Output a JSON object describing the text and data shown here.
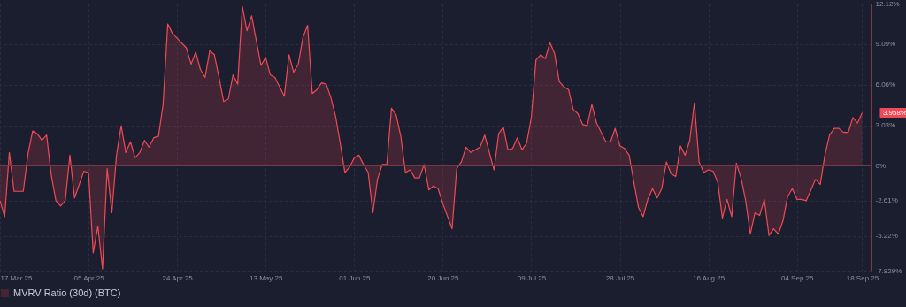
{
  "chart_data": {
    "type": "area",
    "xlim": [
      "2025-03-17",
      "2025-09-20"
    ],
    "ylim": [
      -7.829,
      12.12
    ],
    "xticks": [
      {
        "value": "2025-03-17",
        "label": "17 Mar 25"
      },
      {
        "value": "2025-04-05",
        "label": "05 Apr 25"
      },
      {
        "value": "2025-04-24",
        "label": "24 Apr 25"
      },
      {
        "value": "2025-05-13",
        "label": "13 May 25"
      },
      {
        "value": "2025-06-01",
        "label": "01 Jun 25"
      },
      {
        "value": "2025-06-20",
        "label": "20 Jun 25"
      },
      {
        "value": "2025-07-09",
        "label": "09 Jul 25"
      },
      {
        "value": "2025-07-28",
        "label": "28 Jul 25"
      },
      {
        "value": "2025-08-16",
        "label": "16 Aug 25"
      },
      {
        "value": "2025-09-04",
        "label": "04 Sep 25"
      },
      {
        "value": "2025-09-18",
        "label": "18 Sep 25"
      }
    ],
    "yticks": [
      {
        "value": 12.12,
        "label": "12.12%"
      },
      {
        "value": 9.09,
        "label": "9.09%"
      },
      {
        "value": 6.06,
        "label": "6.06%"
      },
      {
        "value": 3.03,
        "label": "3.03%"
      },
      {
        "value": 0,
        "label": "0%"
      },
      {
        "value": -2.61,
        "label": "-2.61%"
      },
      {
        "value": -5.22,
        "label": "-5.22%"
      },
      {
        "value": -7.829,
        "label": "-7.829%"
      }
    ],
    "grid": true,
    "legend": "bottom",
    "line_style": "solid",
    "ref_lines": [
      {
        "axis": "y",
        "value": 0,
        "color": "#7a3a46"
      }
    ],
    "annotations": [
      {
        "text": "3.958%",
        "x": "2025-09-18",
        "y": 3.958
      }
    ],
    "x": [
      "2025-03-17",
      "2025-03-18",
      "2025-03-19",
      "2025-03-20",
      "2025-03-22",
      "2025-03-23",
      "2025-03-24",
      "2025-03-25",
      "2025-03-26",
      "2025-03-27",
      "2025-03-28",
      "2025-03-29",
      "2025-03-30",
      "2025-03-31",
      "2025-04-01",
      "2025-04-02",
      "2025-04-04",
      "2025-04-05",
      "2025-04-06",
      "2025-04-07",
      "2025-04-08",
      "2025-04-09",
      "2025-04-10",
      "2025-04-11",
      "2025-04-12",
      "2025-04-13",
      "2025-04-14",
      "2025-04-15",
      "2025-04-16",
      "2025-04-17",
      "2025-04-18",
      "2025-04-19",
      "2025-04-20",
      "2025-04-21",
      "2025-04-22",
      "2025-04-23",
      "2025-04-26",
      "2025-04-27",
      "2025-04-28",
      "2025-04-29",
      "2025-04-30",
      "2025-05-01",
      "2025-05-02",
      "2025-05-03",
      "2025-05-04",
      "2025-05-05",
      "2025-05-06",
      "2025-05-07",
      "2025-05-08",
      "2025-05-09",
      "2025-05-10",
      "2025-05-12",
      "2025-05-13",
      "2025-05-14",
      "2025-05-15",
      "2025-05-17",
      "2025-05-18",
      "2025-05-19",
      "2025-05-20",
      "2025-05-21",
      "2025-05-22",
      "2025-05-23",
      "2025-05-24",
      "2025-05-25",
      "2025-05-26",
      "2025-05-27",
      "2025-05-28",
      "2025-05-29",
      "2025-05-30",
      "2025-05-31",
      "2025-06-01",
      "2025-06-02",
      "2025-06-03",
      "2025-06-04",
      "2025-06-05",
      "2025-06-06",
      "2025-06-07",
      "2025-06-08",
      "2025-06-09",
      "2025-06-10",
      "2025-06-11",
      "2025-06-12",
      "2025-06-13",
      "2025-06-14",
      "2025-06-15",
      "2025-06-16",
      "2025-06-17",
      "2025-06-18",
      "2025-06-19",
      "2025-06-20",
      "2025-06-22",
      "2025-06-23",
      "2025-06-24",
      "2025-06-25",
      "2025-06-26",
      "2025-06-27",
      "2025-06-28",
      "2025-06-29",
      "2025-07-01",
      "2025-07-02",
      "2025-07-03",
      "2025-07-04",
      "2025-07-05",
      "2025-07-06",
      "2025-07-07",
      "2025-07-08",
      "2025-07-09",
      "2025-07-10",
      "2025-07-11",
      "2025-07-12",
      "2025-07-13",
      "2025-07-14",
      "2025-07-15",
      "2025-07-16",
      "2025-07-17",
      "2025-07-18",
      "2025-07-19",
      "2025-07-20",
      "2025-07-21",
      "2025-07-22",
      "2025-07-23",
      "2025-07-25",
      "2025-07-26",
      "2025-07-27",
      "2025-07-28",
      "2025-07-29",
      "2025-07-30",
      "2025-07-31",
      "2025-08-01",
      "2025-08-02",
      "2025-08-03",
      "2025-08-04",
      "2025-08-05",
      "2025-08-06",
      "2025-08-07",
      "2025-08-08",
      "2025-08-09",
      "2025-08-10",
      "2025-08-11",
      "2025-08-12",
      "2025-08-13",
      "2025-08-14",
      "2025-08-15",
      "2025-08-16",
      "2025-08-17",
      "2025-08-18",
      "2025-08-19",
      "2025-08-20",
      "2025-08-21",
      "2025-08-22",
      "2025-08-23",
      "2025-08-24",
      "2025-08-25",
      "2025-08-26",
      "2025-08-27",
      "2025-08-28",
      "2025-08-29",
      "2025-08-30",
      "2025-08-31",
      "2025-09-01",
      "2025-09-02",
      "2025-09-03",
      "2025-09-04",
      "2025-09-05",
      "2025-09-06",
      "2025-09-07",
      "2025-09-08",
      "2025-09-09",
      "2025-09-10",
      "2025-09-11",
      "2025-09-12",
      "2025-09-13",
      "2025-09-14",
      "2025-09-15",
      "2025-09-16",
      "2025-09-17",
      "2025-09-18"
    ],
    "series": [
      {
        "name": "MVRV Ratio (30d) (BTC)",
        "color": "#ef4a55",
        "values": [
          -2.6,
          -3.8,
          1.0,
          -1.9,
          -1.9,
          0.9,
          2.6,
          2.4,
          1.9,
          2.3,
          -0.7,
          -2.6,
          -3.0,
          -2.6,
          0.8,
          -2.4,
          -0.4,
          -0.5,
          -6.5,
          -4.5,
          -7.7,
          -0.2,
          -3.5,
          0.8,
          3.0,
          1.0,
          1.8,
          0.6,
          1.0,
          1.9,
          1.4,
          2.1,
          2.2,
          4.6,
          10.6,
          9.9,
          8.8,
          7.6,
          8.5,
          7.2,
          6.6,
          8.6,
          8.3,
          6.6,
          4.8,
          5.0,
          6.8,
          6.1,
          11.9,
          10.1,
          11.2,
          7.5,
          8.1,
          6.8,
          6.6,
          5.2,
          8.3,
          7.0,
          7.6,
          9.6,
          10.5,
          5.4,
          5.7,
          6.2,
          6.1,
          5.1,
          3.7,
          1.7,
          -0.5,
          -0.1,
          0.6,
          0.8,
          0.1,
          -0.5,
          -3.5,
          -1.0,
          0.1,
          0.1,
          4.3,
          3.8,
          2.2,
          -0.5,
          -0.3,
          -0.9,
          -0.9,
          0.1,
          -1.8,
          -1.5,
          -1.7,
          -2.8,
          -4.7,
          -0.2,
          0.3,
          1.4,
          1.0,
          1.2,
          1.4,
          2.3,
          -0.3,
          2.4,
          2.9,
          1.2,
          1.3,
          2.1,
          1.2,
          1.7,
          3.6,
          7.9,
          8.3,
          8.0,
          9.2,
          8.4,
          6.3,
          5.9,
          5.7,
          4.2,
          3.9,
          3.1,
          3.0,
          4.6,
          3.2,
          1.8,
          1.8,
          2.8,
          1.5,
          1.3,
          0.8,
          -1.2,
          -3.1,
          -3.8,
          -2.5,
          -1.7,
          -2.4,
          -1.7,
          0.3,
          -0.6,
          -0.8,
          1.5,
          0.8,
          1.9,
          4.7,
          0.3,
          -0.5,
          -0.3,
          -0.4,
          -1.2,
          -3.9,
          -2.5,
          -3.8,
          0.2,
          -0.9,
          -2.6,
          -5.1,
          -3.5,
          -3.7,
          -2.5,
          -5.2,
          -4.7,
          -5.1,
          -4.1,
          -2.3,
          -1.7,
          -2.5,
          -2.5,
          -2.6,
          -1.8,
          -1.0,
          -1.4,
          0.8,
          2.3,
          2.8,
          2.8,
          2.5,
          2.5,
          3.6,
          3.2,
          3.96
        ]
      }
    ]
  }
}
